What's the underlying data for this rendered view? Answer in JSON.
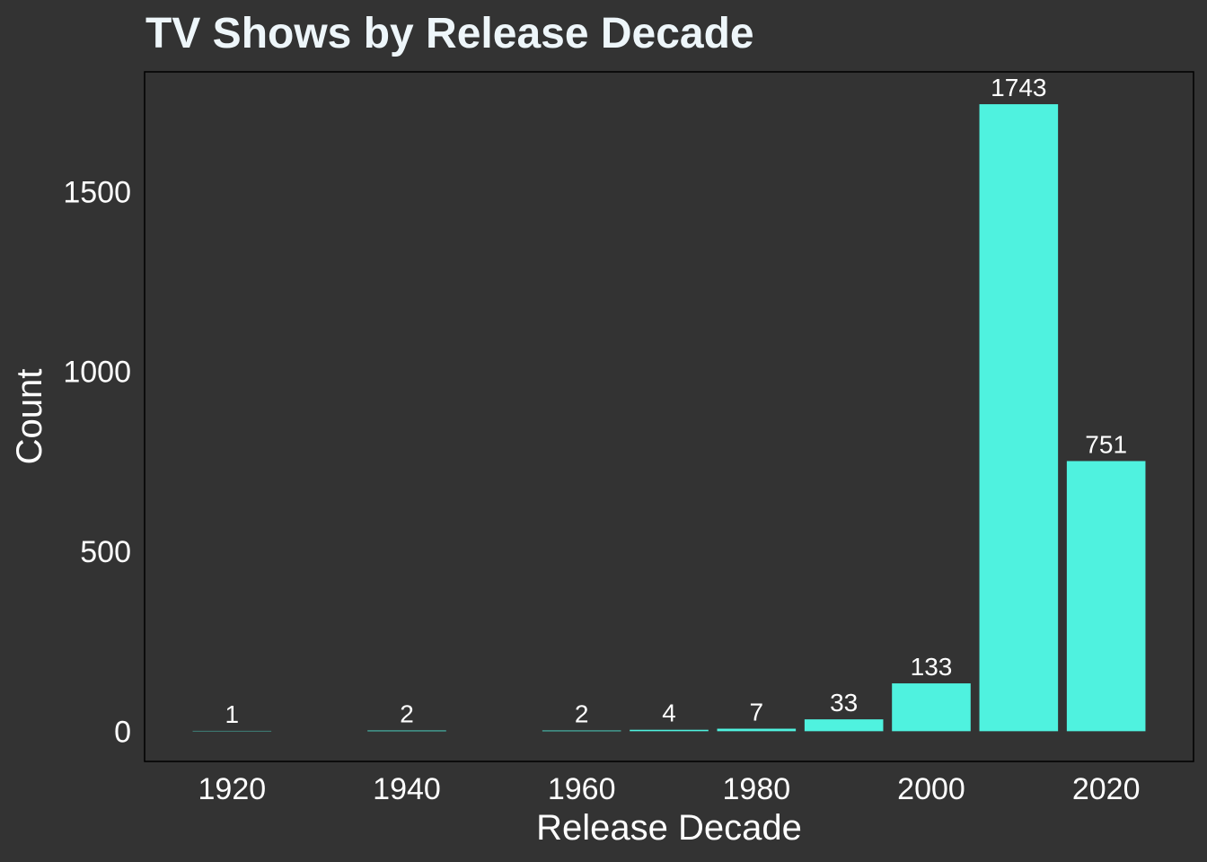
{
  "chart_data": {
    "type": "bar",
    "title": "TV Shows by Release Decade",
    "xlabel": "Release Decade",
    "ylabel": "Count",
    "categories": [
      1920,
      1940,
      1960,
      1970,
      1980,
      1990,
      2000,
      2010,
      2020
    ],
    "values": [
      1,
      2,
      2,
      4,
      7,
      33,
      133,
      1743,
      751
    ],
    "data_labels": [
      "1",
      "2",
      "2",
      "4",
      "7",
      "33",
      "133",
      "1743",
      "751"
    ],
    "x_ticks": [
      1920,
      1940,
      1960,
      1980,
      2000,
      2020
    ],
    "x_tick_labels": [
      "1920",
      "1940",
      "1960",
      "1980",
      "2000",
      "2020"
    ],
    "y_ticks": [
      0,
      500,
      1000,
      1500
    ],
    "y_tick_labels": [
      "0",
      "500",
      "1000",
      "1500"
    ],
    "xlim": [
      1910,
      2030
    ],
    "ylim": [
      -84,
      1833
    ],
    "bar_width_years": 9,
    "grid": false,
    "legend": "none",
    "colors": {
      "background": "#333333",
      "panel": "#333333",
      "bar": "#4FF2DF",
      "text": "#FFFFFF",
      "title": "#EEF6FA",
      "axis_line": "#000000"
    }
  }
}
